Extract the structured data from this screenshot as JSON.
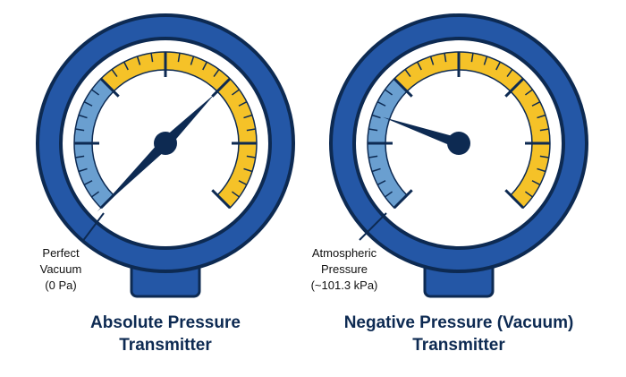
{
  "gauges": [
    {
      "annotation": [
        "Perfect",
        "Vacuum",
        "(0 Pa)"
      ],
      "title": [
        "Absolute Pressure",
        "Transmitter"
      ]
    },
    {
      "annotation": [
        "Atmospheric",
        "Pressure",
        "(~101.3 kPa)"
      ],
      "title": [
        "Negative Pressure (Vacuum)",
        "Transmitter"
      ]
    }
  ]
}
